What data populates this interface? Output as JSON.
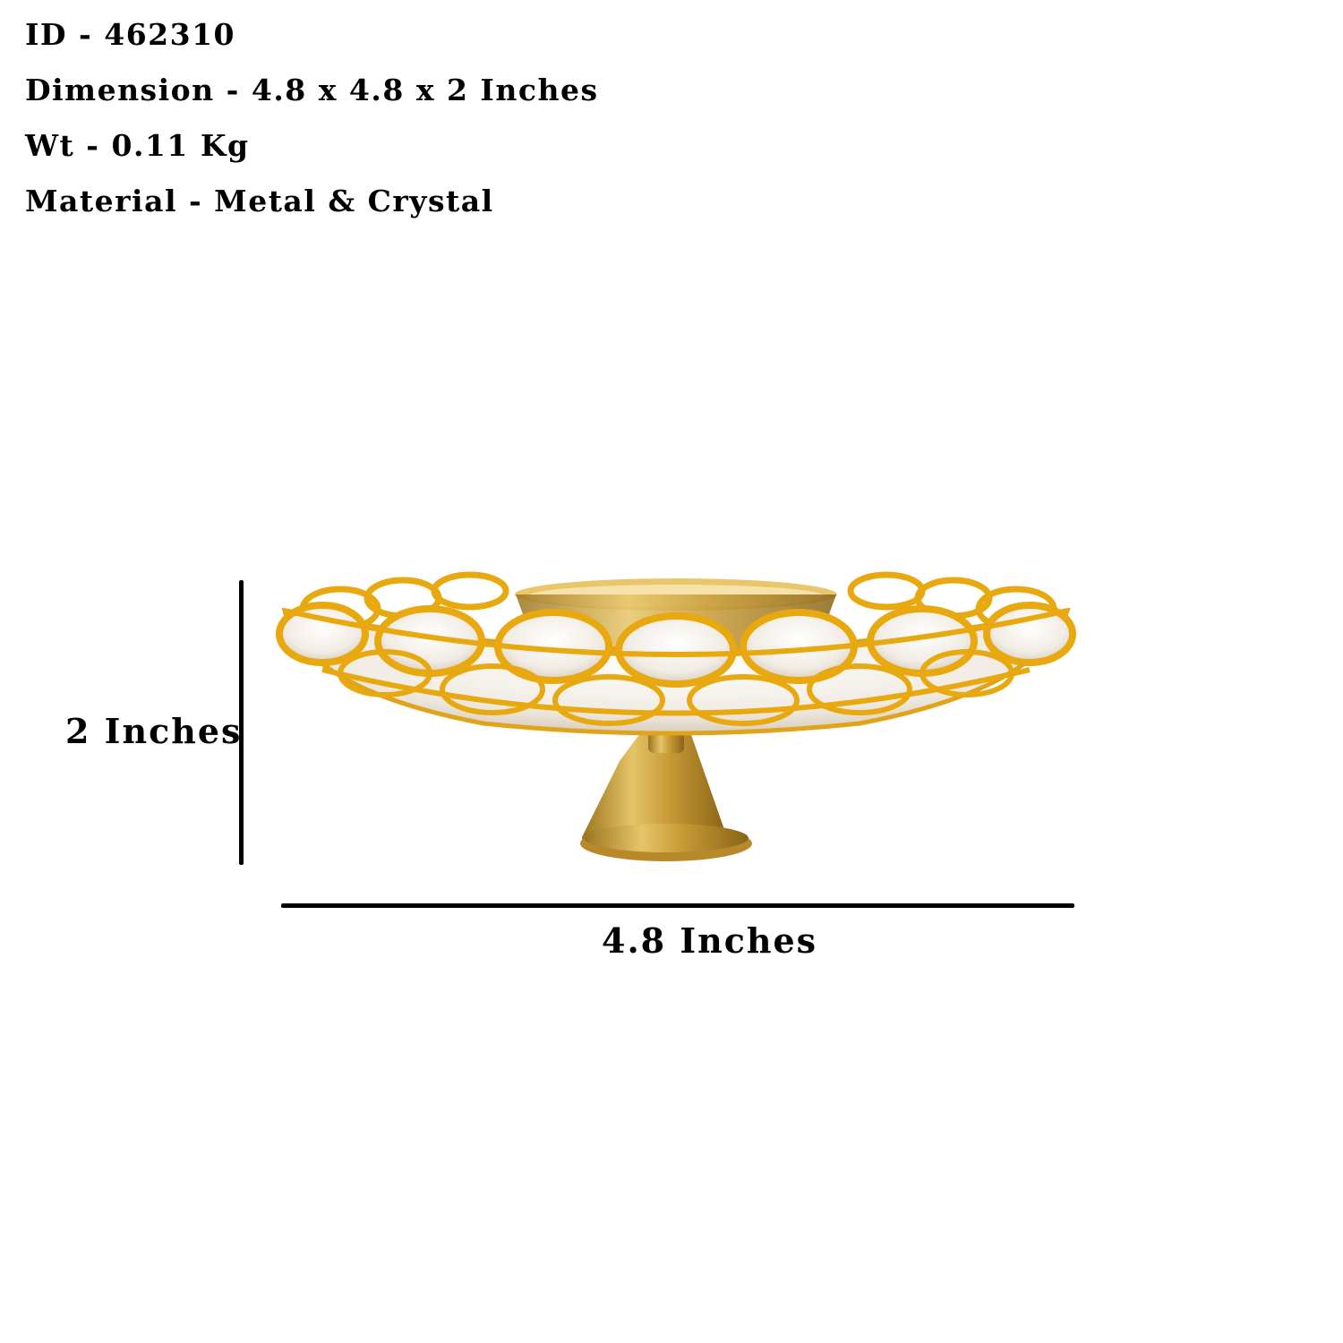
{
  "specs": {
    "id": "ID - 462310",
    "dimension": "Dimension - 4.8 x 4.8 x 2 Inches",
    "weight": "Wt - 0.11 Kg",
    "material": "Material - Metal & Crystal"
  },
  "dimensions": {
    "height_label": "2 Inches",
    "width_label": "4.8 Inches"
  },
  "colors": {
    "gold": "#E8A80F",
    "brass": "#C9A23A",
    "text": "#000000"
  }
}
